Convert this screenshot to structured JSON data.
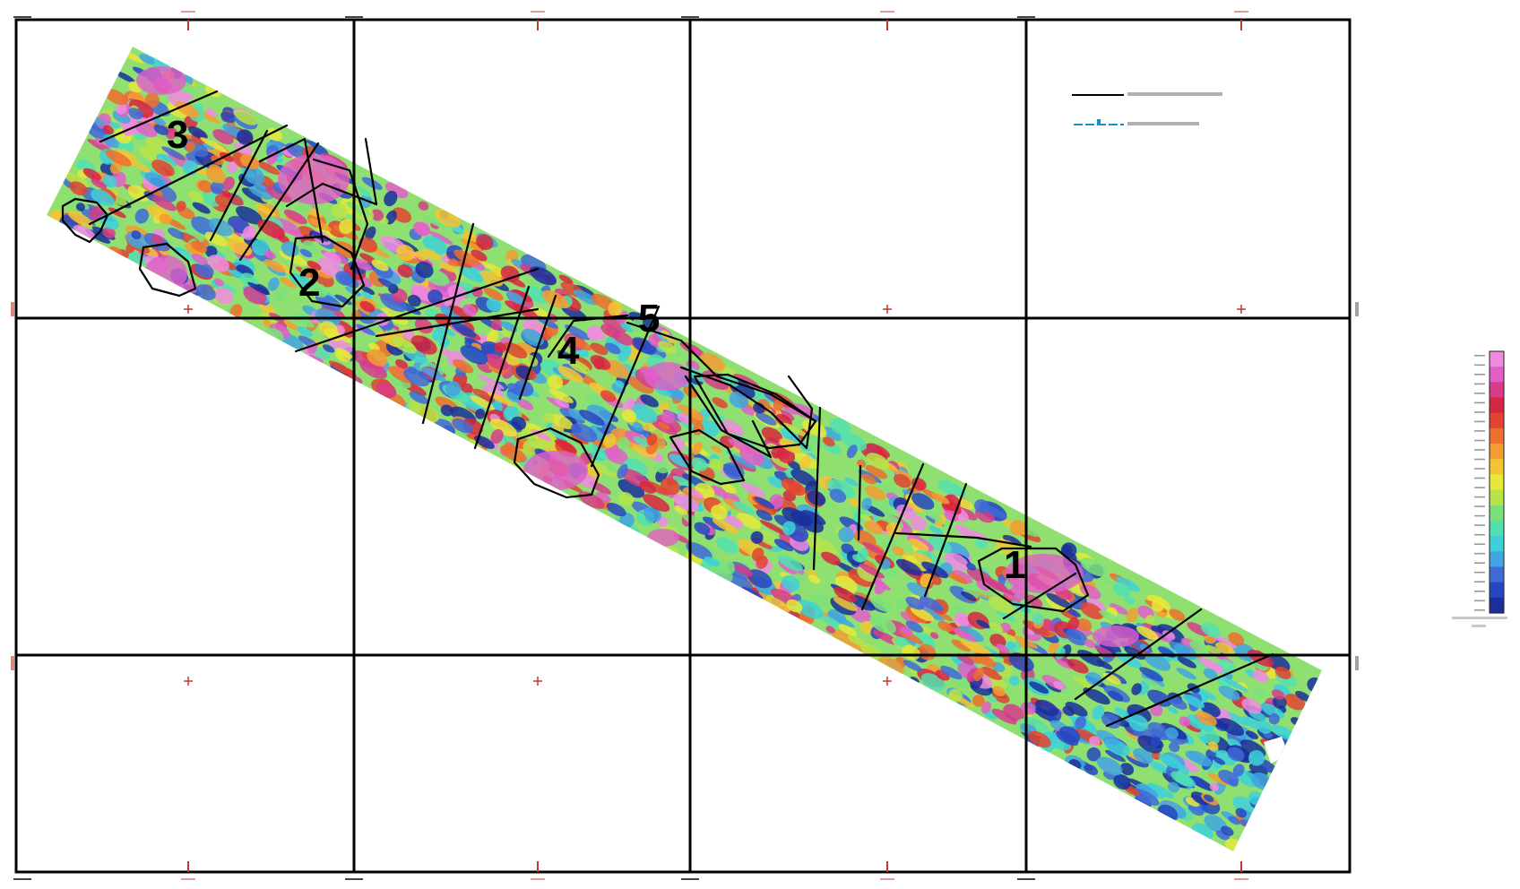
{
  "map": {
    "anomaly_labels": [
      "3",
      "2",
      "5",
      "4",
      "1"
    ],
    "legend": {
      "items": [
        {
          "name": "interpreted-contact-line",
          "color": "#000000",
          "style": "solid"
        },
        {
          "name": "interpreted-fault-line",
          "color": "#1a8fd0",
          "style": "dash-marker"
        }
      ]
    },
    "color_scale": {
      "colors": [
        "#1a2f9c",
        "#2747c0",
        "#3f6ad8",
        "#42a4e0",
        "#3dd0d8",
        "#52e0b0",
        "#7ce07a",
        "#b6e34a",
        "#e6e83a",
        "#f4c434",
        "#f39c32",
        "#ee6f2e",
        "#e24430",
        "#d7263f",
        "#d63c8a",
        "#e05fc8",
        "#f08ae0"
      ],
      "tick_count": 28
    },
    "colors": {
      "grid": "#000000",
      "tick_mark": "#c0392b",
      "outline": "#000000"
    }
  }
}
